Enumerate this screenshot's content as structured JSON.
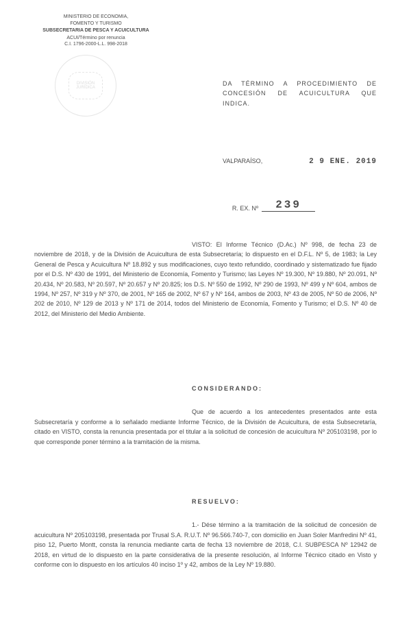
{
  "header": {
    "ministry_line1": "MINISTERIO DE ECONOMIA,",
    "ministry_line2": "FOMENTO Y TURISMO",
    "subsecretaria": "SUBSECRETARIA DE PESCA Y ACUICULTURA",
    "ref_line1": "ACUI/Término por renuncia",
    "ref_line2": "C.I. 1796-2000-L.L. 998-2018"
  },
  "stamp": {
    "text": "DIVISIÓN JURÍDICA"
  },
  "title": "DA TÉRMINO A PROCEDIMIENTO DE CONCESIÓN DE ACUICULTURA QUE INDICA.",
  "location": "VALPARAÍSO,",
  "date": "2 9 ENE. 2019",
  "rex_label": "R. EX. Nº",
  "rex_number": "239",
  "visto": {
    "text": "VISTO: El Informe Técnico (D.Ac.) Nº 998, de fecha 23 de noviembre de 2018, y de la División de Acuicultura de esta Subsecretaría; lo dispuesto en el D.F.L. Nº 5, de 1983; la Ley General de Pesca y Acuicultura Nº 18.892 y sus modificaciones, cuyo texto refundido, coordinado y sistematizado fue fijado por el D.S. Nº 430 de 1991, del Ministerio de Economía, Fomento y Turismo; las Leyes Nº 19.300, Nº 19.880, Nº 20.091, Nº 20.434, Nº 20.583, Nº 20.597, Nº 20.657 y Nº 20.825; los D.S. Nº 550 de 1992, Nº 290 de 1993, Nº 499 y Nº 604, ambos de 1994, Nº 257, Nº 319 y Nº 370, de 2001, Nº 165 de 2002, Nº 67 y Nº 164, ambos de 2003, Nº 43 de 2005, Nº 50 de 2006, Nº 202 de 2010, Nº 129 de 2013 y Nº 171 de 2014, todos del Ministerio de Economía, Fomento y Turismo; el D.S. Nº 40 de 2012, del Ministerio del Medio Ambiente."
  },
  "considerando": {
    "heading": "CONSIDERANDO:",
    "text": "Que de acuerdo a los antecedentes presentados ante esta Subsecretaría y conforme a lo señalado mediante Informe Técnico, de la División de Acuicultura, de esta Subsecretaría, citado en VISTO, consta la renuncia presentada por el titular a la solicitud de concesión de acuicultura Nº 205103198, por lo que corresponde poner término a la tramitación de la misma."
  },
  "resuelvo": {
    "heading": "RESUELVO:",
    "text": "1.- Dése término a la tramitación de la solicitud de concesión de acuicultura Nº 205103198, presentada por Trusal S.A. R.U.T. Nº 96.566.740-7, con domicilio en Juan Soler Manfredini Nº 41, piso 12, Puerto Montt, consta la renuncia mediante carta de fecha 13 noviembre de 2018, C.I. SUBPESCA Nº 12942 de 2018, en virtud de lo dispuesto en la parte considerativa de la presente resolución, al Informe Técnico citado en Visto y conforme con lo dispuesto en los artículos 40 inciso 1º y 42, ambos de la Ley Nº 19.880."
  },
  "colors": {
    "text": "#4a4a4a",
    "background": "#ffffff",
    "stamp": "#aaaaaa"
  },
  "typography": {
    "body_fontsize": 9,
    "header_fontsize": 7,
    "date_fontsize": 11,
    "rex_number_fontsize": 16
  }
}
